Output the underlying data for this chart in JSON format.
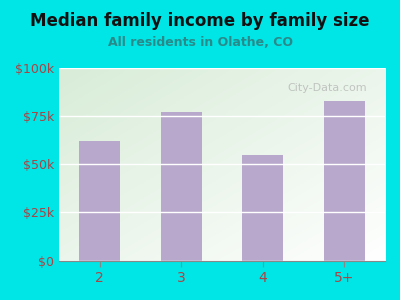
{
  "categories": [
    "2",
    "3",
    "4",
    "5+"
  ],
  "values": [
    62000,
    77000,
    55000,
    83000
  ],
  "bar_color": "#b8a8cc",
  "title": "Median family income by family size",
  "subtitle": "All residents in Olathe, CO",
  "title_color": "#111111",
  "subtitle_color": "#2a8a8a",
  "background_color": "#00e5e5",
  "ylim": [
    0,
    100000
  ],
  "yticks": [
    0,
    25000,
    50000,
    75000,
    100000
  ],
  "ytick_labels": [
    "$0",
    "$25k",
    "$50k",
    "$75k",
    "$100k"
  ],
  "tick_color": "#aa4444",
  "watermark": "City-Data.com"
}
